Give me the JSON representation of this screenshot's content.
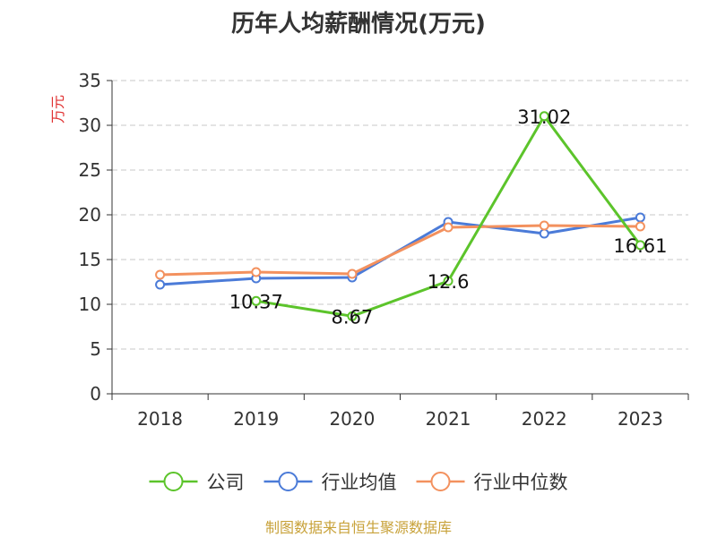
{
  "chart_data": {
    "type": "line",
    "title": "历年人均薪酬情况(万元)",
    "ylabel": "万元",
    "xlabel": "",
    "categories": [
      "2018",
      "2019",
      "2020",
      "2021",
      "2022",
      "2023"
    ],
    "ylim": [
      0,
      35
    ],
    "yticks": [
      0,
      5,
      10,
      15,
      20,
      25,
      30,
      35
    ],
    "grid": true,
    "legend_position": "bottom",
    "series": [
      {
        "name": "公司",
        "color": "#5cc42b",
        "values": [
          null,
          10.37,
          8.67,
          12.6,
          31.02,
          16.61
        ],
        "labels": [
          "",
          "10.37",
          "8.67",
          "12.6",
          "31.02",
          "16.61"
        ]
      },
      {
        "name": "行业均值",
        "color": "#4b7bd8",
        "values": [
          12.2,
          12.9,
          13.0,
          19.2,
          17.9,
          19.7
        ]
      },
      {
        "name": "行业中位数",
        "color": "#f3915e",
        "values": [
          13.3,
          13.6,
          13.4,
          18.6,
          18.8,
          18.7
        ]
      }
    ],
    "source": "制图数据来自恒生聚源数据库"
  }
}
